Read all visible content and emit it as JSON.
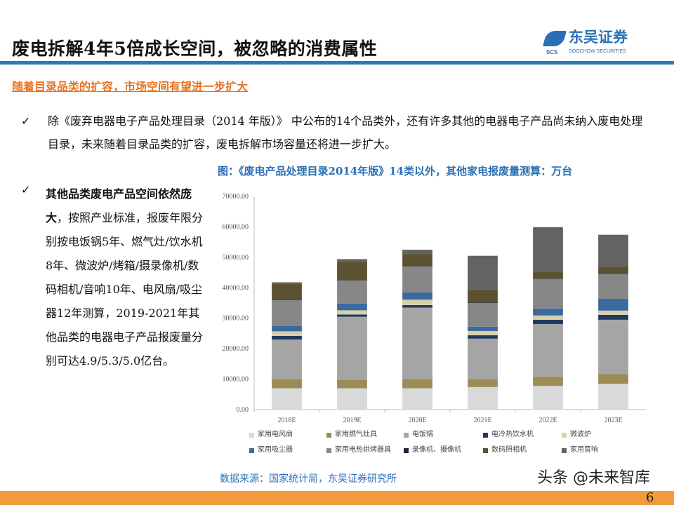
{
  "header": {
    "title": "废电拆解4年5倍成长空间，被忽略的消费属性",
    "logo_cn": "东吴证券",
    "logo_en": "SOOCHOW SECURITIES",
    "logo_abbr": "SCS"
  },
  "subtitle": "随着目录品类的扩容，市场空间有望进一步扩大",
  "bullet1": {
    "check": "✓",
    "text": "除《废弃电器电子产品处理目录（2014 年版）》 中公布的14个品类外，还有许多其他的电器电子产品尚未纳入废电处理目录，未来随着目录品类的扩容，废电拆解市场容量还将进一步扩大。"
  },
  "bullet2": {
    "check": "✓",
    "bold": "其他品类废电产品空间依然庞大",
    "text": "，按照产业标准，报废年限分别按电饭锅5年、燃气灶/饮水机8年、微波炉/烤箱/摄录像机/数码相机/音响10年、电风扇/吸尘器12年测算，2019-2021年其他品类的电器电子产品报废量分别可达4.9/5.3/5.0亿台。"
  },
  "chart_caption": "图：《废电产品处理目录2014年版》14类以外，其他家电报废量测算：万台",
  "source": "数据来源：国家统计局，东吴证券研究所",
  "watermark": "头条 @未来智库",
  "page_number": "6",
  "chart_data": {
    "type": "bar",
    "stacked": true,
    "categories": [
      "2018E",
      "2019E",
      "2020E",
      "2021E",
      "2022E",
      "2023E"
    ],
    "ylim": [
      0,
      70000
    ],
    "yticks": [
      "0.00",
      "10000.00",
      "20000.00",
      "30000.00",
      "40000.00",
      "50000.00",
      "60000.00",
      "70000.00"
    ],
    "legend_position": "bottom",
    "series": [
      {
        "name": "家用电风扇",
        "color": "#d9d9d9",
        "values": [
          7000,
          7000,
          7000,
          7400,
          7800,
          8500
        ]
      },
      {
        "name": "家用燃气灶具",
        "color": "#9c8b55",
        "values": [
          3000,
          2800,
          3000,
          2500,
          3000,
          3200
        ]
      },
      {
        "name": "电饭锅",
        "color": "#a5a5a5",
        "values": [
          13000,
          20700,
          23500,
          13400,
          17300,
          17800
        ]
      },
      {
        "name": "电冷热饮水机",
        "color": "#1f3a5f",
        "values": [
          1200,
          700,
          800,
          1100,
          1400,
          1600
        ]
      },
      {
        "name": "微波炉",
        "color": "#d8ceaa",
        "values": [
          1500,
          1400,
          1800,
          1400,
          1400,
          1400
        ]
      },
      {
        "name": "家用吸尘器",
        "color": "#3b6aa0",
        "values": [
          1700,
          2200,
          2400,
          1400,
          2300,
          3900
        ]
      },
      {
        "name": "家用电热烘烤器具",
        "color": "#878787",
        "values": [
          8500,
          7500,
          8500,
          7800,
          9700,
          8100
        ]
      },
      {
        "name": "录像机、摄像机",
        "color": "#1a2a3a",
        "values": [
          200,
          100,
          100,
          200,
          200,
          200
        ]
      },
      {
        "name": "数码照相机",
        "color": "#5c5232",
        "values": [
          5300,
          6100,
          4000,
          4200,
          2300,
          2300
        ]
      },
      {
        "name": "家用音响",
        "color": "#636363",
        "values": [
          400,
          900,
          1400,
          11100,
          14500,
          10400
        ]
      }
    ]
  }
}
